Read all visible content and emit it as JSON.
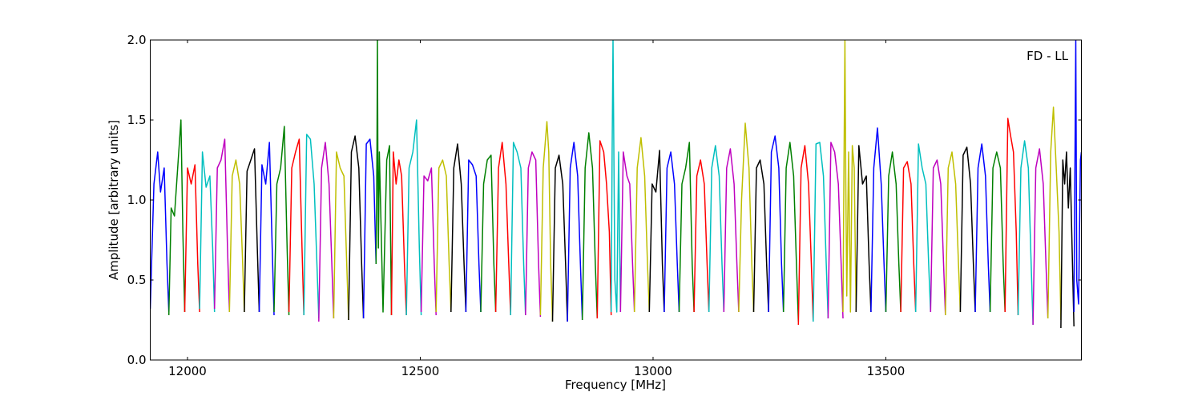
{
  "chart_data": {
    "type": "line",
    "xlabel": "Frequency [MHz]",
    "ylabel": "Amplitude [arbitrary units]",
    "annotation": "FD - LL",
    "xlim": [
      11920,
      13920
    ],
    "ylim": [
      0.0,
      2.0
    ],
    "xticks": [
      12000,
      12500,
      13000,
      13500
    ],
    "xtick_labels": [
      "12000",
      "12500",
      "13000",
      "13500"
    ],
    "yticks": [
      0.0,
      0.5,
      1.0,
      1.5,
      2.0
    ],
    "ytick_labels": [
      "0.0",
      "0.5",
      "1.0",
      "1.5",
      "2.0"
    ],
    "grid": false,
    "legend": "none",
    "color_cycle": [
      "#0000ff",
      "#008000",
      "#ff0000",
      "#00bfbf",
      "#bf00bf",
      "#bfbf00",
      "#000000"
    ],
    "series": [
      {
        "color": "#0000ff",
        "x": [
          11920,
          11928,
          11936,
          11942,
          11950,
          11956,
          11960
        ],
        "y": [
          0.32,
          1.1,
          1.3,
          1.05,
          1.2,
          0.6,
          0.3
        ]
      },
      {
        "color": "#008000",
        "x": [
          11960,
          11965,
          11972,
          11980,
          11986,
          11990,
          11994
        ],
        "y": [
          0.28,
          0.95,
          0.9,
          1.25,
          1.5,
          0.8,
          0.3
        ]
      },
      {
        "color": "#ff0000",
        "x": [
          11994,
          12000,
          12008,
          12016,
          12022,
          12026
        ],
        "y": [
          0.3,
          1.2,
          1.1,
          1.22,
          0.6,
          0.3
        ]
      },
      {
        "color": "#00bfbf",
        "x": [
          12026,
          12032,
          12040,
          12048,
          12054,
          12058
        ],
        "y": [
          0.32,
          1.3,
          1.08,
          1.15,
          0.7,
          0.3
        ]
      },
      {
        "color": "#bf00bf",
        "x": [
          12058,
          12064,
          12072,
          12080,
          12086,
          12090
        ],
        "y": [
          0.32,
          1.2,
          1.25,
          1.38,
          0.7,
          0.3
        ]
      },
      {
        "color": "#bfbf00",
        "x": [
          12090,
          12096,
          12104,
          12112,
          12118,
          12122
        ],
        "y": [
          0.3,
          1.15,
          1.25,
          1.1,
          0.65,
          0.3
        ]
      },
      {
        "color": "#000000",
        "x": [
          12122,
          12128,
          12136,
          12144,
          12150,
          12154
        ],
        "y": [
          0.3,
          1.18,
          1.25,
          1.32,
          0.7,
          0.3
        ]
      },
      {
        "color": "#0000ff",
        "x": [
          12154,
          12160,
          12168,
          12176,
          12182,
          12186
        ],
        "y": [
          0.3,
          1.22,
          1.1,
          1.36,
          0.7,
          0.28
        ]
      },
      {
        "color": "#008000",
        "x": [
          12186,
          12192,
          12200,
          12208,
          12214,
          12218
        ],
        "y": [
          0.3,
          1.1,
          1.2,
          1.46,
          0.7,
          0.28
        ]
      },
      {
        "color": "#ff0000",
        "x": [
          12218,
          12224,
          12232,
          12240,
          12246,
          12250
        ],
        "y": [
          0.3,
          1.2,
          1.3,
          1.38,
          0.7,
          0.28
        ]
      },
      {
        "color": "#00bfbf",
        "x": [
          12250,
          12256,
          12264,
          12272,
          12278,
          12282
        ],
        "y": [
          0.28,
          1.41,
          1.38,
          1.1,
          0.6,
          0.26
        ]
      },
      {
        "color": "#bf00bf",
        "x": [
          12282,
          12288,
          12296,
          12304,
          12310,
          12314
        ],
        "y": [
          0.24,
          1.2,
          1.36,
          1.1,
          0.6,
          0.26
        ]
      },
      {
        "color": "#bfbf00",
        "x": [
          12314,
          12320,
          12328,
          12336,
          12342,
          12346
        ],
        "y": [
          0.26,
          1.3,
          1.2,
          1.15,
          0.6,
          0.25
        ]
      },
      {
        "color": "#000000",
        "x": [
          12346,
          12352,
          12360,
          12368,
          12374,
          12378
        ],
        "y": [
          0.25,
          1.3,
          1.4,
          1.2,
          0.6,
          0.26
        ]
      },
      {
        "color": "#0000ff",
        "x": [
          12378,
          12384,
          12392,
          12400,
          12405
        ],
        "y": [
          0.26,
          1.35,
          1.38,
          1.15,
          0.6
        ]
      },
      {
        "color": "#008000",
        "x": [
          12405,
          12407,
          12408,
          12409,
          12410,
          12412,
          12420,
          12428,
          12434,
          12438
        ],
        "y": [
          0.6,
          1.3,
          2.0,
          1.2,
          0.7,
          1.3,
          0.3,
          1.25,
          1.34,
          0.28
        ]
      },
      {
        "color": "#ff0000",
        "x": [
          12438,
          12442,
          12448,
          12454,
          12460,
          12466,
          12470
        ],
        "y": [
          0.28,
          1.3,
          1.1,
          1.25,
          1.15,
          0.6,
          0.28
        ]
      },
      {
        "color": "#00bfbf",
        "x": [
          12470,
          12476,
          12484,
          12492,
          12498,
          12502
        ],
        "y": [
          0.28,
          1.2,
          1.3,
          1.5,
          0.7,
          0.28
        ]
      },
      {
        "color": "#bf00bf",
        "x": [
          12502,
          12508,
          12516,
          12524,
          12530,
          12534
        ],
        "y": [
          0.3,
          1.15,
          1.12,
          1.2,
          0.6,
          0.28
        ]
      },
      {
        "color": "#bfbf00",
        "x": [
          12534,
          12540,
          12548,
          12556,
          12562,
          12566
        ],
        "y": [
          0.3,
          1.2,
          1.25,
          1.15,
          0.6,
          0.3
        ]
      },
      {
        "color": "#000000",
        "x": [
          12566,
          12572,
          12580,
          12588,
          12594,
          12598
        ],
        "y": [
          0.3,
          1.2,
          1.35,
          1.1,
          0.6,
          0.3
        ]
      },
      {
        "color": "#0000ff",
        "x": [
          12598,
          12604,
          12612,
          12620,
          12626,
          12630
        ],
        "y": [
          0.3,
          1.25,
          1.22,
          1.15,
          0.6,
          0.3
        ]
      },
      {
        "color": "#008000",
        "x": [
          12630,
          12636,
          12644,
          12652,
          12658,
          12662
        ],
        "y": [
          0.3,
          1.1,
          1.25,
          1.28,
          0.6,
          0.3
        ]
      },
      {
        "color": "#ff0000",
        "x": [
          12662,
          12668,
          12676,
          12684,
          12690,
          12694
        ],
        "y": [
          0.3,
          1.2,
          1.36,
          1.1,
          0.6,
          0.28
        ]
      },
      {
        "color": "#00bfbf",
        "x": [
          12694,
          12700,
          12708,
          12716,
          12722,
          12726
        ],
        "y": [
          0.28,
          1.36,
          1.3,
          1.2,
          0.6,
          0.28
        ]
      },
      {
        "color": "#bf00bf",
        "x": [
          12726,
          12732,
          12740,
          12748,
          12754,
          12758
        ],
        "y": [
          0.28,
          1.2,
          1.3,
          1.25,
          0.6,
          0.27
        ]
      },
      {
        "color": "#bfbf00",
        "x": [
          12758,
          12764,
          12772,
          12776,
          12780,
          12784
        ],
        "y": [
          0.28,
          1.2,
          1.49,
          1.3,
          0.6,
          0.24
        ]
      },
      {
        "color": "#000000",
        "x": [
          12784,
          12790,
          12798,
          12806,
          12812,
          12816
        ],
        "y": [
          0.24,
          1.2,
          1.28,
          1.1,
          0.6,
          0.24
        ]
      },
      {
        "color": "#0000ff",
        "x": [
          12816,
          12822,
          12830,
          12838,
          12844,
          12848
        ],
        "y": [
          0.24,
          1.2,
          1.36,
          1.15,
          0.6,
          0.25
        ]
      },
      {
        "color": "#008000",
        "x": [
          12848,
          12854,
          12862,
          12870,
          12876,
          12880
        ],
        "y": [
          0.25,
          1.2,
          1.42,
          1.2,
          0.6,
          0.26
        ]
      },
      {
        "color": "#ff0000",
        "x": [
          12880,
          12886,
          12894,
          12900,
          12906,
          12910
        ],
        "y": [
          0.26,
          1.37,
          1.3,
          1.1,
          0.8,
          0.28
        ]
      },
      {
        "color": "#00bfbf",
        "x": [
          12910,
          12912,
          12914,
          12916,
          12918,
          12922,
          12926,
          12930
        ],
        "y": [
          0.3,
          1.3,
          2.0,
          1.2,
          0.5,
          0.3,
          1.3,
          0.3
        ]
      },
      {
        "color": "#bf00bf",
        "x": [
          12930,
          12936,
          12944,
          12950,
          12956,
          12960
        ],
        "y": [
          0.3,
          1.3,
          1.15,
          1.1,
          0.6,
          0.3
        ]
      },
      {
        "color": "#bfbf00",
        "x": [
          12960,
          12966,
          12974,
          12982,
          12988,
          12992
        ],
        "y": [
          0.3,
          1.2,
          1.39,
          1.15,
          0.6,
          0.3
        ]
      },
      {
        "color": "#000000",
        "x": [
          12992,
          12998,
          13006,
          13014,
          13020,
          13024
        ],
        "y": [
          0.3,
          1.1,
          1.05,
          1.31,
          0.6,
          0.3
        ]
      },
      {
        "color": "#0000ff",
        "x": [
          13024,
          13030,
          13038,
          13046,
          13052,
          13056
        ],
        "y": [
          0.3,
          1.2,
          1.3,
          1.1,
          0.6,
          0.3
        ]
      },
      {
        "color": "#008000",
        "x": [
          13056,
          13062,
          13070,
          13078,
          13084,
          13088
        ],
        "y": [
          0.3,
          1.1,
          1.2,
          1.36,
          0.6,
          0.3
        ]
      },
      {
        "color": "#ff0000",
        "x": [
          13088,
          13094,
          13102,
          13110,
          13116,
          13120
        ],
        "y": [
          0.3,
          1.15,
          1.25,
          1.1,
          0.6,
          0.3
        ]
      },
      {
        "color": "#00bfbf",
        "x": [
          13120,
          13126,
          13134,
          13142,
          13148,
          13152
        ],
        "y": [
          0.3,
          1.2,
          1.34,
          1.15,
          0.6,
          0.3
        ]
      },
      {
        "color": "#bf00bf",
        "x": [
          13152,
          13158,
          13166,
          13174,
          13180,
          13184
        ],
        "y": [
          0.3,
          1.2,
          1.32,
          1.1,
          0.6,
          0.3
        ]
      },
      {
        "color": "#bfbf00",
        "x": [
          13184,
          13190,
          13198,
          13206,
          13212,
          13216
        ],
        "y": [
          0.3,
          1.0,
          1.48,
          1.2,
          0.6,
          0.3
        ]
      },
      {
        "color": "#000000",
        "x": [
          13216,
          13222,
          13230,
          13238,
          13244,
          13248
        ],
        "y": [
          0.3,
          1.2,
          1.25,
          1.1,
          0.6,
          0.3
        ]
      },
      {
        "color": "#0000ff",
        "x": [
          13248,
          13254,
          13262,
          13270,
          13276,
          13280
        ],
        "y": [
          0.3,
          1.3,
          1.4,
          1.2,
          0.6,
          0.3
        ]
      },
      {
        "color": "#008000",
        "x": [
          13280,
          13286,
          13294,
          13302,
          13308,
          13312
        ],
        "y": [
          0.3,
          1.2,
          1.36,
          1.15,
          0.6,
          0.24
        ]
      },
      {
        "color": "#ff0000",
        "x": [
          13312,
          13318,
          13326,
          13334,
          13340,
          13344
        ],
        "y": [
          0.22,
          1.2,
          1.34,
          1.1,
          0.6,
          0.24
        ]
      },
      {
        "color": "#00bfbf",
        "x": [
          13344,
          13350,
          13358,
          13366,
          13372,
          13376
        ],
        "y": [
          0.24,
          1.35,
          1.36,
          1.15,
          0.6,
          0.26
        ]
      },
      {
        "color": "#bf00bf",
        "x": [
          13376,
          13382,
          13390,
          13398,
          13404,
          13408
        ],
        "y": [
          0.26,
          1.36,
          1.3,
          1.1,
          0.6,
          0.26
        ]
      },
      {
        "color": "#bfbf00",
        "x": [
          13408,
          13410,
          13412,
          13414,
          13416,
          13420,
          13424,
          13428,
          13432,
          13436
        ],
        "y": [
          0.3,
          1.2,
          2.0,
          1.1,
          0.4,
          1.3,
          0.3,
          1.34,
          1.2,
          0.3
        ]
      },
      {
        "color": "#000000",
        "x": [
          13436,
          13442,
          13450,
          13458,
          13464,
          13468
        ],
        "y": [
          0.3,
          1.34,
          1.1,
          1.15,
          0.6,
          0.3
        ]
      },
      {
        "color": "#0000ff",
        "x": [
          13468,
          13474,
          13482,
          13490,
          13496,
          13500
        ],
        "y": [
          0.3,
          1.2,
          1.45,
          1.1,
          0.6,
          0.3
        ]
      },
      {
        "color": "#008000",
        "x": [
          13500,
          13506,
          13514,
          13522,
          13528,
          13532
        ],
        "y": [
          0.3,
          1.15,
          1.3,
          1.1,
          0.6,
          0.3
        ]
      },
      {
        "color": "#ff0000",
        "x": [
          13532,
          13538,
          13546,
          13554,
          13560,
          13564
        ],
        "y": [
          0.3,
          1.2,
          1.24,
          1.1,
          0.6,
          0.3
        ]
      },
      {
        "color": "#00bfbf",
        "x": [
          13564,
          13570,
          13578,
          13586,
          13592,
          13596
        ],
        "y": [
          0.3,
          1.35,
          1.2,
          1.1,
          0.6,
          0.3
        ]
      },
      {
        "color": "#bf00bf",
        "x": [
          13596,
          13602,
          13610,
          13618,
          13624,
          13628
        ],
        "y": [
          0.3,
          1.2,
          1.25,
          1.1,
          0.6,
          0.28
        ]
      },
      {
        "color": "#bfbf00",
        "x": [
          13628,
          13634,
          13642,
          13650,
          13656,
          13660
        ],
        "y": [
          0.28,
          1.2,
          1.3,
          1.1,
          0.6,
          0.3
        ]
      },
      {
        "color": "#000000",
        "x": [
          13660,
          13666,
          13674,
          13682,
          13688,
          13692
        ],
        "y": [
          0.3,
          1.28,
          1.33,
          1.1,
          0.6,
          0.3
        ]
      },
      {
        "color": "#0000ff",
        "x": [
          13692,
          13698,
          13706,
          13714,
          13720,
          13724
        ],
        "y": [
          0.3,
          1.2,
          1.35,
          1.15,
          0.6,
          0.3
        ]
      },
      {
        "color": "#008000",
        "x": [
          13724,
          13730,
          13738,
          13746,
          13752,
          13756
        ],
        "y": [
          0.3,
          1.2,
          1.3,
          1.2,
          0.6,
          0.3
        ]
      },
      {
        "color": "#ff0000",
        "x": [
          13756,
          13762,
          13768,
          13774,
          13780,
          13784
        ],
        "y": [
          0.3,
          1.51,
          1.4,
          1.3,
          0.8,
          0.28
        ]
      },
      {
        "color": "#00bfbf",
        "x": [
          13784,
          13790,
          13798,
          13806,
          13812,
          13816
        ],
        "y": [
          0.28,
          1.2,
          1.37,
          1.2,
          0.6,
          0.22
        ]
      },
      {
        "color": "#bf00bf",
        "x": [
          13816,
          13822,
          13830,
          13838,
          13844,
          13848
        ],
        "y": [
          0.22,
          1.2,
          1.32,
          1.1,
          0.6,
          0.26
        ]
      },
      {
        "color": "#bfbf00",
        "x": [
          13848,
          13854,
          13860,
          13866,
          13872,
          13876
        ],
        "y": [
          0.26,
          1.3,
          1.58,
          1.2,
          0.8,
          0.25
        ]
      },
      {
        "color": "#000000",
        "x": [
          13876,
          13880,
          13884,
          13888,
          13892,
          13896,
          13900,
          13904
        ],
        "y": [
          0.2,
          1.25,
          1.1,
          1.3,
          0.95,
          1.2,
          0.7,
          0.21
        ]
      },
      {
        "color": "#0000ff",
        "x": [
          13904,
          13906,
          13908,
          13910,
          13914,
          13918,
          13920
        ],
        "y": [
          0.3,
          1.2,
          2.0,
          0.5,
          0.35,
          1.25,
          1.3
        ]
      }
    ]
  }
}
